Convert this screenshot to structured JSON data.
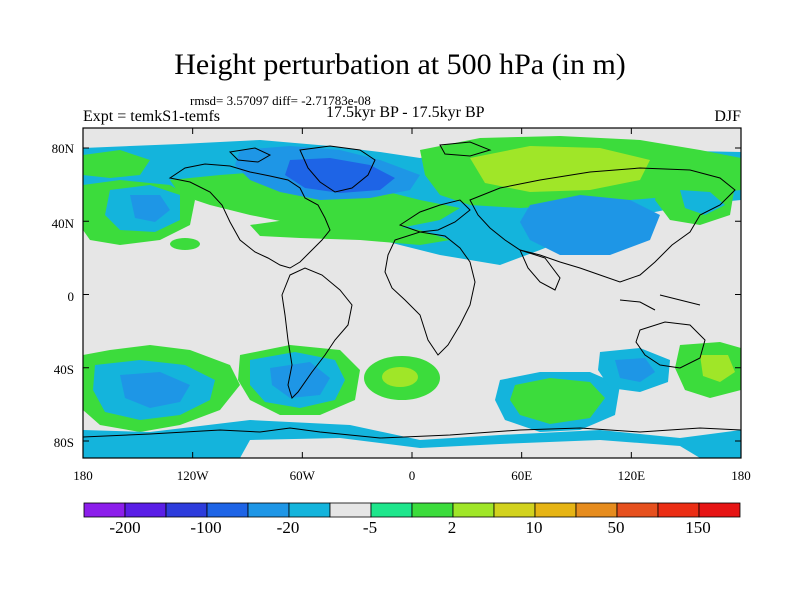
{
  "title": "Height perturbation at 500 hPa (in m)",
  "stats_line": "rmsd= 3.57097 diff= -2.71783e-08",
  "left_label": "Expt = temkS1-temfs",
  "center_label": "17.5kyr BP - 17.5kyr BP",
  "right_label": "DJF",
  "map": {
    "lat_ticks": [
      "80N",
      "40N",
      "0",
      "40S",
      "80S"
    ],
    "lon_ticks": [
      "180",
      "120W",
      "60W",
      "0",
      "60E",
      "120E",
      "180"
    ],
    "background_color": "#e6e6e6"
  },
  "colorbar": {
    "colors": [
      "#8c1eeb",
      "#5a1ee6",
      "#2d3cdc",
      "#1e64e6",
      "#1e96e6",
      "#14b4dc",
      "#e6e6e6",
      "#1ee68c",
      "#3cdc3c",
      "#a0e628",
      "#d2d21e",
      "#e6b414",
      "#e68c1e",
      "#e6501e",
      "#eb2d14",
      "#e61414"
    ],
    "labels": [
      "-200",
      "-100",
      "-20",
      "-5",
      "2",
      "10",
      "50",
      "150"
    ]
  }
}
